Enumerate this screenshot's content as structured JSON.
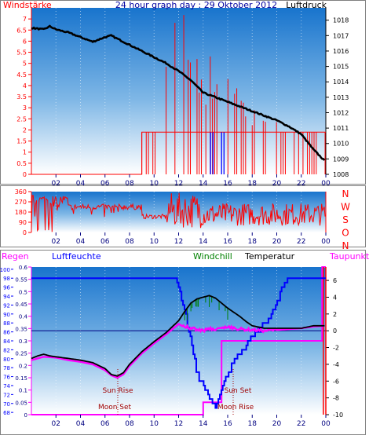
{
  "colors": {
    "red": "#ff0000",
    "blue": "#0000ff",
    "navy": "#000080",
    "black": "#000000",
    "green": "#008000",
    "magenta": "#ff00ff",
    "darkred": "#a00000",
    "bg_top": "#1874cd",
    "bg_bottom": "#ffffff"
  },
  "time_ticks": [
    "02",
    "04",
    "06",
    "08",
    "10",
    "12",
    "14",
    "16",
    "18",
    "20",
    "22",
    "00"
  ],
  "chart_data": [
    {
      "type": "line",
      "title": "24 hour graph day : 29 Oktober 2012",
      "left_axis_label": "Windstärke",
      "right_axis_label": "Luftdruck",
      "x_range_hours": [
        0,
        24
      ],
      "left_ylim": [
        0,
        7.5
      ],
      "left_ticks": [
        "0",
        "0.5",
        "1",
        "1.5",
        "2",
        "2.5",
        "3",
        "3.5",
        "4",
        "4.5",
        "5",
        "5.5",
        "6",
        "6.5",
        "7"
      ],
      "right_ylim": [
        1008,
        1018.8
      ],
      "right_ticks": [
        "1008",
        "1009",
        "1010",
        "1011",
        "1012",
        "1013",
        "1014",
        "1015",
        "1016",
        "1017",
        "1018"
      ],
      "series": [
        {
          "axis": "right",
          "x": [
            0,
            1,
            1.5,
            2,
            3,
            4,
            5,
            6,
            6.5,
            7,
            8,
            9,
            10,
            11,
            12,
            13,
            14,
            15,
            16,
            17,
            18,
            19,
            20,
            21,
            22,
            23,
            24
          ],
          "values": [
            1017.5,
            1017.4,
            1017.6,
            1017.4,
            1017.2,
            1016.9,
            1016.6,
            1016.9,
            1017.0,
            1016.8,
            1016.4,
            1016.0,
            1015.6,
            1015.2,
            1014.7,
            1014.1,
            1013.3,
            1013.0,
            1012.7,
            1012.4,
            1012.1,
            1011.8,
            1011.5,
            1011.1,
            1010.6,
            1009.6,
            1008.8
          ]
        },
        {
          "axis": "left",
          "x": [
            0,
            9,
            9.001,
            24
          ],
          "values": [
            0,
            0,
            1.9,
            1.9
          ]
        }
      ]
    },
    {
      "type": "line",
      "x_range_hours": [
        0,
        24
      ],
      "ylim": [
        0,
        360
      ],
      "left_ticks": [
        "0",
        "90",
        "180",
        "270",
        "360"
      ],
      "right_labels": [
        "N",
        "W",
        "S",
        "O",
        "N"
      ]
    },
    {
      "type": "line",
      "labels": [
        "Regen",
        "Luftfeuchte",
        "Windchill",
        "Temperatur",
        "Taupunkt"
      ],
      "annotations": [
        "Sun Rise",
        "Moon Set",
        "Sun Set",
        "Moon Rise"
      ],
      "x_range_hours": [
        0,
        24
      ],
      "humidity_ticks": [
        "68",
        "70",
        "72",
        "74",
        "76",
        "78",
        "80",
        "82",
        "84",
        "86",
        "88",
        "90",
        "92",
        "94",
        "96",
        "98",
        "100"
      ],
      "rain_ticks": [
        "0",
        "0.05",
        "0.1",
        "0.15",
        "0.2",
        "0.25",
        "0.3",
        "0.35",
        "0.4",
        "0.45",
        "0.5",
        "0.55",
        "0.6"
      ],
      "temp_ticks": [
        "-10",
        "-8",
        "-6",
        "-4",
        "-2",
        "0",
        "2",
        "4",
        "6"
      ],
      "temp_ylim": [
        -10,
        7.6
      ],
      "series": [
        {
          "axis": "temperature",
          "x": [
            0,
            0.5,
            1,
            1.5,
            2,
            3,
            4,
            5,
            6,
            6.5,
            7,
            7.5,
            8,
            9,
            10,
            11,
            12,
            12.5,
            13,
            13.5,
            14,
            14.5,
            15,
            15.5,
            16,
            17,
            17.5,
            18,
            19,
            20,
            21,
            22,
            23,
            24
          ],
          "values": [
            -3.3,
            -3.0,
            -2.8,
            -3.0,
            -3.1,
            -3.3,
            -3.5,
            -3.8,
            -4.5,
            -5.2,
            -5.4,
            -5.0,
            -4.0,
            -2.5,
            -1.3,
            -0.2,
            1.2,
            2.3,
            3.3,
            3.8,
            4.0,
            4.2,
            3.9,
            3.3,
            2.7,
            1.7,
            1.1,
            0.6,
            0.3,
            0.3,
            0.3,
            0.3,
            0.6,
            0.6
          ]
        },
        {
          "axis": "temperature",
          "x": [
            0,
            1,
            2,
            3,
            4,
            5,
            6,
            6.5,
            7,
            7.5,
            8,
            9,
            10,
            11,
            12,
            13,
            14,
            14.5,
            15,
            16,
            17,
            18,
            19,
            20,
            21,
            22,
            23,
            24
          ],
          "values": [
            -3.5,
            -3.1,
            -3.2,
            -3.5,
            -3.7,
            -4.0,
            -4.7,
            -5.3,
            -5.6,
            -5.2,
            -4.2,
            -2.7,
            -1.5,
            -0.4,
            0.8,
            0.3,
            0.0,
            0.3,
            0.1,
            0.5,
            0.2,
            0.1,
            0.0,
            0.1,
            0.2,
            0.3,
            0.5,
            0.6
          ]
        },
        {
          "axis": "humidity",
          "x": [
            0,
            11.8,
            12.5,
            13,
            13.5,
            14,
            14.5,
            15,
            15.5,
            16,
            16.5,
            17,
            17.5,
            18,
            19,
            20,
            20.5,
            21,
            22,
            24
          ],
          "values": [
            98,
            98,
            91,
            84,
            77,
            74,
            71,
            69,
            74,
            77,
            79,
            81,
            83,
            85,
            88,
            92,
            96,
            98,
            98,
            98
          ]
        }
      ]
    }
  ]
}
